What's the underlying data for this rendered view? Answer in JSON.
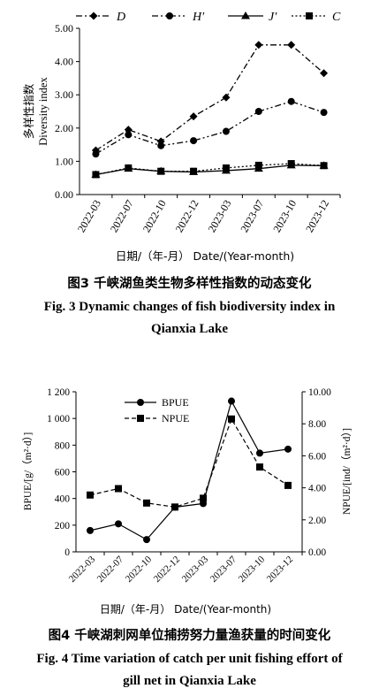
{
  "figure3": {
    "caption_cn": "图3 千峡湖鱼类生物多样性指数的动态变化",
    "caption_en_line1": "Fig. 3 Dynamic changes of fish biodiversity index in",
    "caption_en_line2": "Qianxia Lake"
  },
  "figure4": {
    "caption_cn": "图4 千峡湖刺网单位捕捞努力量渔获量的时间变化",
    "caption_en_line1": "Fig. 4 Time variation of catch per unit fishing effort of",
    "caption_en_line2": "gill net in Qianxia Lake"
  },
  "chart_data": [
    {
      "type": "line",
      "categories": [
        "2022-03",
        "2022-07",
        "2022-10",
        "2022-12",
        "2023-03",
        "2023-07",
        "2023-10",
        "2023-12"
      ],
      "series": [
        {
          "name": "D",
          "marker": "diamond",
          "line": "dash-dot",
          "values": [
            1.33,
            1.95,
            1.6,
            2.35,
            2.92,
            4.5,
            4.5,
            3.65
          ]
        },
        {
          "name": "H′",
          "marker": "circle",
          "line": "dash-dot-dot",
          "values": [
            1.22,
            1.8,
            1.47,
            1.62,
            1.9,
            2.5,
            2.8,
            2.47
          ]
        },
        {
          "name": "J′",
          "marker": "triangle",
          "line": "solid",
          "values": [
            0.6,
            0.78,
            0.7,
            0.68,
            0.72,
            0.78,
            0.88,
            0.87
          ]
        },
        {
          "name": "C",
          "marker": "square",
          "line": "dotted",
          "values": [
            0.6,
            0.8,
            0.7,
            0.7,
            0.8,
            0.88,
            0.93,
            0.87
          ]
        }
      ],
      "ylabel_cn": "多样性指数",
      "ylabel_en": "Diversity index",
      "xlabel": "日期/（年-月） Date/(Year-month)",
      "ylim": [
        0,
        5
      ],
      "yticks": [
        "0.00",
        "1.00",
        "2.00",
        "3.00",
        "4.00",
        "5.00"
      ],
      "legend": "top"
    },
    {
      "type": "line",
      "categories": [
        "2022-03",
        "2022-07",
        "2022-10",
        "2022-12",
        "2023-03",
        "2023-07",
        "2023-10",
        "2023-12"
      ],
      "series": [
        {
          "name": "BPUE",
          "axis": "left",
          "marker": "circle",
          "line": "solid",
          "values": [
            160,
            210,
            92,
            335,
            362,
            1130,
            740,
            770
          ]
        },
        {
          "name": "NPUE",
          "axis": "right",
          "marker": "square",
          "line": "dashed",
          "values": [
            3.55,
            3.95,
            3.05,
            2.8,
            3.35,
            8.3,
            5.3,
            4.15
          ]
        }
      ],
      "ylabel_left": "BPUE/[g/（m²·d）]",
      "ylabel_right": "NPUE/[ind/（m²·d）]",
      "xlabel": "日期/（年-月） Date/(Year-month)",
      "ylim_left": [
        0,
        1200
      ],
      "ylim_right": [
        0,
        10
      ],
      "yticks_left": [
        "0",
        "200",
        "400",
        "600",
        "800",
        "1 000",
        "1 200"
      ],
      "yticks_right": [
        "0.00",
        "2.00",
        "4.00",
        "6.00",
        "8.00",
        "10.00"
      ],
      "legend": "top-left"
    }
  ]
}
